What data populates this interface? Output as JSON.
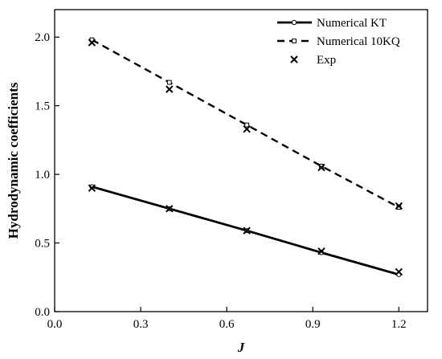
{
  "chart_data": {
    "type": "line",
    "xlabel": "J",
    "ylabel": "Hydrodynamic coefficients",
    "xlim": [
      0.0,
      1.3
    ],
    "ylim": [
      0.0,
      2.2
    ],
    "xticks": [
      0.0,
      0.3,
      0.6,
      0.9,
      1.2
    ],
    "yticks": [
      0.0,
      0.5,
      1.0,
      1.5,
      2.0
    ],
    "xtick_labels": [
      "0.0",
      "0.3",
      "0.6",
      "0.9",
      "1.2"
    ],
    "ytick_labels": [
      "0.0",
      "0.5",
      "1.0",
      "1.5",
      "2.0"
    ],
    "grid": false,
    "legend_position": "top-right",
    "series": [
      {
        "name": "Numerical KT",
        "style": "solid",
        "marker": "circle",
        "color": "#000000",
        "x": [
          0.13,
          0.4,
          0.67,
          0.93,
          1.2
        ],
        "y": [
          0.91,
          0.75,
          0.59,
          0.43,
          0.27
        ]
      },
      {
        "name": "Numerical 10KQ",
        "style": "dashed",
        "marker": "square",
        "color": "#000000",
        "x": [
          0.13,
          0.4,
          0.67,
          0.93,
          1.2
        ],
        "y": [
          1.98,
          1.67,
          1.36,
          1.06,
          0.76
        ]
      },
      {
        "name": "Exp",
        "style": "none",
        "marker": "x",
        "color": "#000000",
        "x": [
          0.13,
          0.4,
          0.67,
          0.93,
          1.2,
          0.13,
          0.4,
          0.67,
          0.93,
          1.2
        ],
        "y": [
          0.9,
          0.75,
          0.59,
          0.44,
          0.29,
          1.96,
          1.62,
          1.33,
          1.05,
          0.77
        ]
      }
    ]
  }
}
